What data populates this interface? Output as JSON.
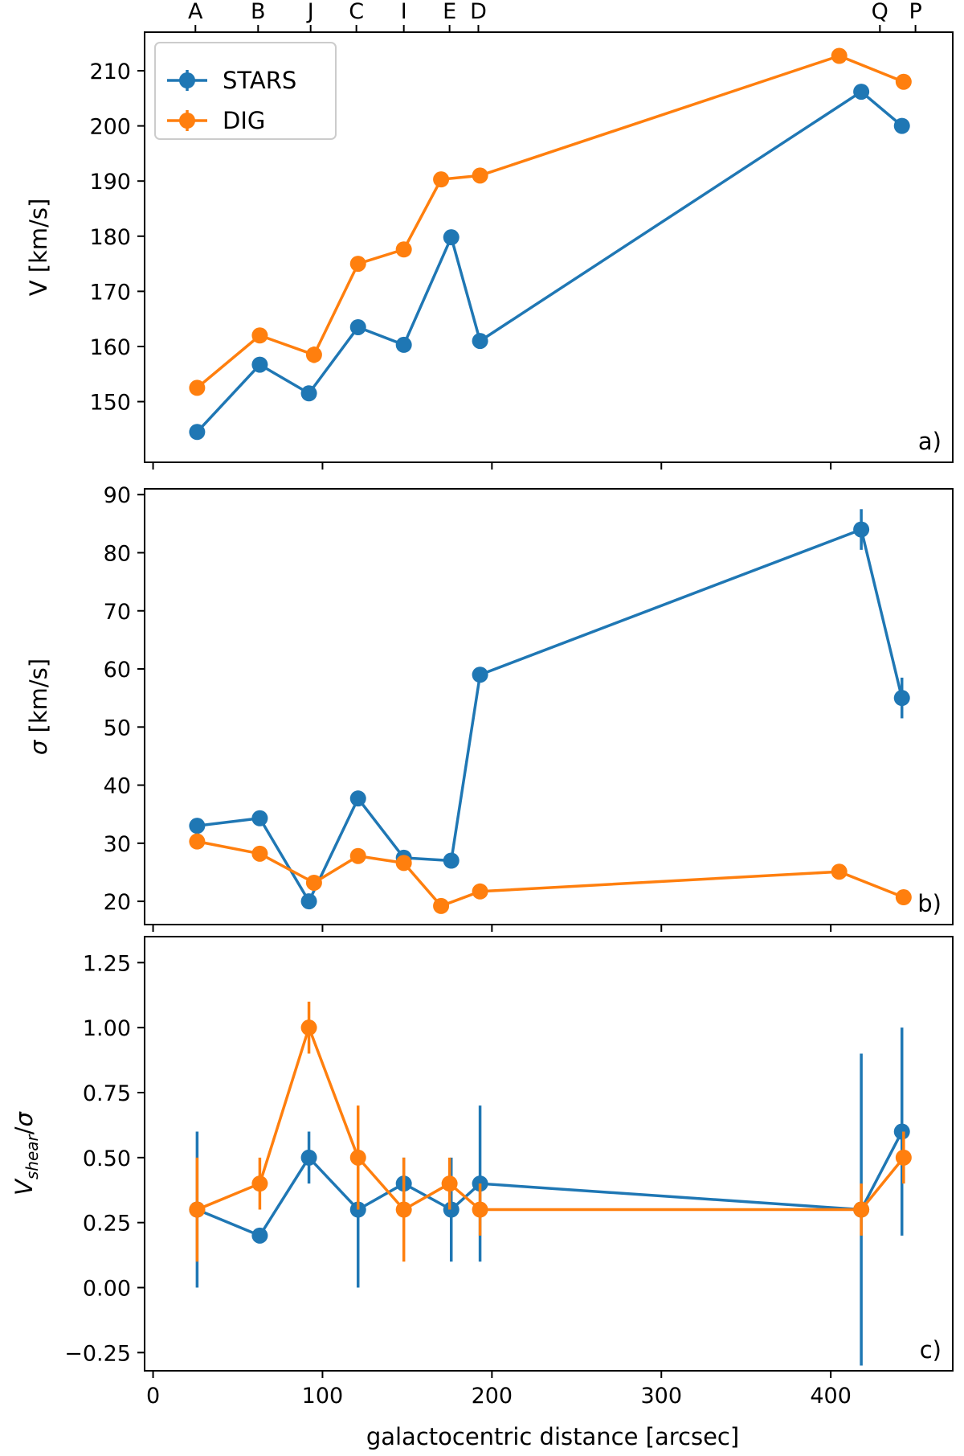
{
  "figure": {
    "x_label": "galactocentric distance [arcsec]",
    "colors": {
      "stars": "#1f77b4",
      "dig": "#ff7f0e"
    },
    "top_regions": [
      {
        "label": "A",
        "x": 25
      },
      {
        "label": "B",
        "x": 62
      },
      {
        "label": "J",
        "x": 93
      },
      {
        "label": "C",
        "x": 120
      },
      {
        "label": "I",
        "x": 148
      },
      {
        "label": "E",
        "x": 175
      },
      {
        "label": "D",
        "x": 192
      },
      {
        "label": "Q",
        "x": 429
      },
      {
        "label": "P",
        "x": 450
      }
    ]
  },
  "chart_data": [
    {
      "type": "line",
      "panel": "a)",
      "ylabel": "V [km/s]",
      "xlim": [
        -5,
        472
      ],
      "ylim": [
        139,
        217
      ],
      "yticks": [
        150,
        160,
        170,
        180,
        190,
        200,
        210
      ],
      "xticks": [
        0,
        100,
        200,
        300,
        400
      ],
      "legend": {
        "placement": "top-left",
        "entries": [
          "STARS",
          "DIG"
        ]
      },
      "series": [
        {
          "name": "STARS",
          "color": "#1f77b4",
          "x": [
            26,
            63,
            92,
            121,
            148,
            176,
            193,
            418,
            442
          ],
          "y": [
            144.5,
            156.7,
            151.5,
            163.5,
            160.3,
            179.8,
            161.0,
            206.2,
            200.0
          ],
          "err": [
            0,
            0,
            0,
            0,
            0,
            0,
            0,
            0,
            0
          ]
        },
        {
          "name": "DIG",
          "color": "#ff7f0e",
          "x": [
            26,
            63,
            95,
            121,
            148,
            170,
            193,
            405,
            443
          ],
          "y": [
            152.5,
            162.0,
            158.5,
            175.0,
            177.6,
            190.3,
            191.0,
            212.7,
            208.0
          ],
          "err": [
            0,
            0,
            1.5,
            0,
            0,
            0,
            0,
            0,
            0
          ]
        }
      ]
    },
    {
      "type": "line",
      "panel": "b)",
      "ylabel": "σ [km/s]",
      "xlim": [
        -5,
        472
      ],
      "ylim": [
        16,
        91
      ],
      "yticks": [
        20,
        30,
        40,
        50,
        60,
        70,
        80,
        90
      ],
      "xticks": [
        0,
        100,
        200,
        300,
        400
      ],
      "series": [
        {
          "name": "STARS",
          "color": "#1f77b4",
          "x": [
            26,
            63,
            92,
            121,
            148,
            176,
            193,
            418,
            442
          ],
          "y": [
            33.0,
            34.3,
            20.0,
            37.7,
            27.5,
            27.0,
            59.0,
            84.0,
            55.0
          ],
          "err": [
            0,
            0,
            0,
            0,
            0,
            0,
            0,
            3.5,
            3.5
          ]
        },
        {
          "name": "DIG",
          "color": "#ff7f0e",
          "x": [
            26,
            63,
            95,
            121,
            148,
            170,
            193,
            405,
            443
          ],
          "y": [
            30.3,
            28.2,
            23.2,
            27.8,
            26.6,
            19.2,
            21.7,
            25.1,
            20.7
          ],
          "err": [
            0,
            0,
            0,
            0,
            0,
            0,
            0,
            0,
            0
          ]
        }
      ]
    },
    {
      "type": "line",
      "panel": "c)",
      "ylabel": "V_shear/σ",
      "xlim": [
        -5,
        472
      ],
      "ylim": [
        -0.32,
        1.35
      ],
      "yticks": [
        -0.25,
        0.0,
        0.25,
        0.5,
        0.75,
        1.0,
        1.25
      ],
      "ytick_labels": [
        "−0.25",
        "0.00",
        "0.25",
        "0.50",
        "0.75",
        "1.00",
        "1.25"
      ],
      "xticks": [
        0,
        100,
        200,
        300,
        400
      ],
      "xtick_labels": [
        "0",
        "100",
        "200",
        "300",
        "400"
      ],
      "series": [
        {
          "name": "STARS",
          "color": "#1f77b4",
          "x": [
            26,
            63,
            92,
            121,
            148,
            176,
            193,
            418,
            442
          ],
          "y": [
            0.3,
            0.2,
            0.5,
            0.3,
            0.4,
            0.3,
            0.4,
            0.3,
            0.6
          ],
          "err": [
            0.3,
            0,
            0.1,
            0.3,
            0.1,
            0.2,
            0.3,
            0.6,
            0.4
          ]
        },
        {
          "name": "DIG",
          "color": "#ff7f0e",
          "x": [
            26,
            63,
            92,
            121,
            148,
            175,
            193,
            418,
            443
          ],
          "y": [
            0.3,
            0.4,
            1.0,
            0.5,
            0.3,
            0.4,
            0.3,
            0.3,
            0.5
          ],
          "err": [
            0.2,
            0.1,
            0.1,
            0.2,
            0.2,
            0.1,
            0.1,
            0.1,
            0.1
          ]
        }
      ]
    }
  ]
}
